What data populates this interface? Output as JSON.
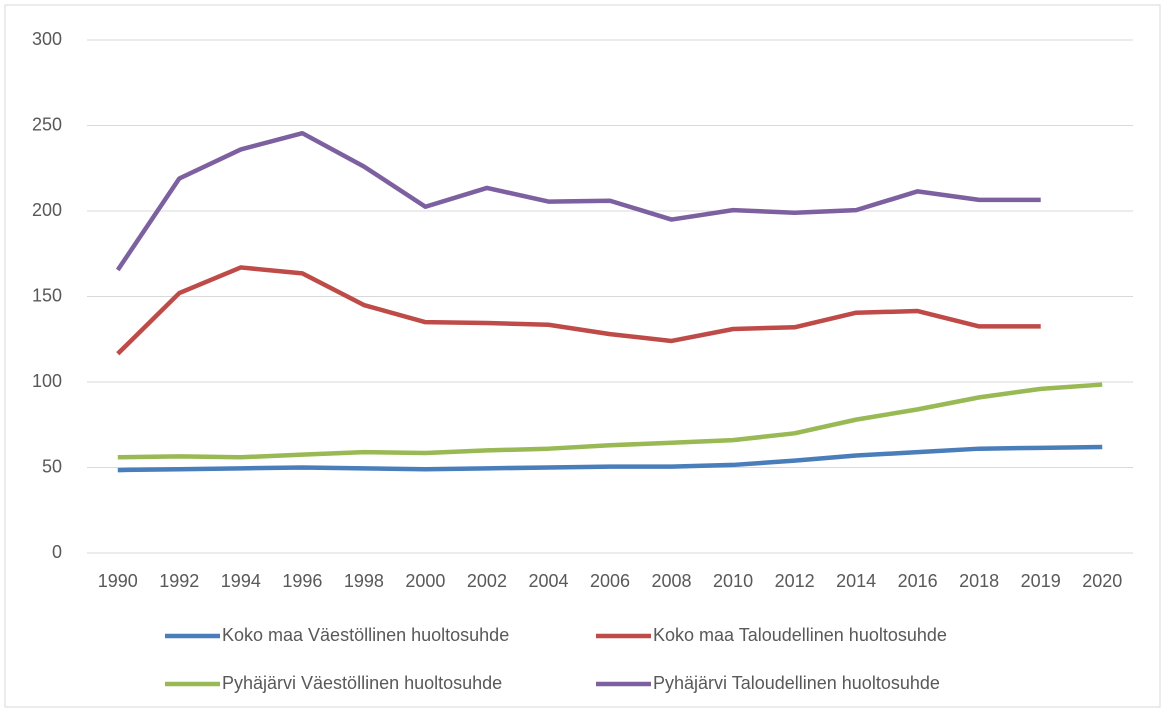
{
  "chart_data": {
    "type": "line",
    "categories": [
      "1990",
      "1992",
      "1994",
      "1996",
      "1998",
      "2000",
      "2002",
      "2004",
      "2006",
      "2008",
      "2010",
      "2012",
      "2014",
      "2016",
      "2018",
      "2019",
      "2020"
    ],
    "series": [
      {
        "name": "Koko maa Väestöllinen huoltosuhde",
        "color": "#4a7ebb",
        "values": [
          48.5,
          49,
          49.5,
          50,
          49.5,
          49,
          49.5,
          50,
          50.5,
          50.5,
          51.5,
          54,
          57,
          59,
          61,
          61.5,
          62
        ]
      },
      {
        "name": "Koko maa Taloudellinen huoltosuhde",
        "color": "#be4b48",
        "values": [
          116.5,
          152,
          167,
          163.5,
          145,
          135,
          134.5,
          133.5,
          128,
          124,
          131,
          132,
          140.5,
          141.5,
          132.5,
          132.5,
          null
        ]
      },
      {
        "name": "Pyhäjärvi Väestöllinen huoltosuhde",
        "color": "#98b954",
        "values": [
          56,
          56.5,
          56,
          57.5,
          59,
          58.5,
          60,
          61,
          63,
          64.5,
          66,
          70,
          78,
          84,
          91,
          96,
          98.5
        ]
      },
      {
        "name": "Pyhäjärvi Taloudellinen huoltosuhde",
        "color": "#7d60a0",
        "values": [
          165.5,
          219,
          236,
          245.5,
          226,
          202.5,
          213.5,
          205.5,
          206,
          195,
          200.5,
          199,
          200.5,
          211.5,
          206.5,
          206.5,
          null
        ]
      }
    ],
    "ylim": [
      0,
      300
    ],
    "yticks": [
      0,
      50,
      100,
      150,
      200,
      250,
      300
    ],
    "grid": true,
    "legend": "bottom"
  }
}
